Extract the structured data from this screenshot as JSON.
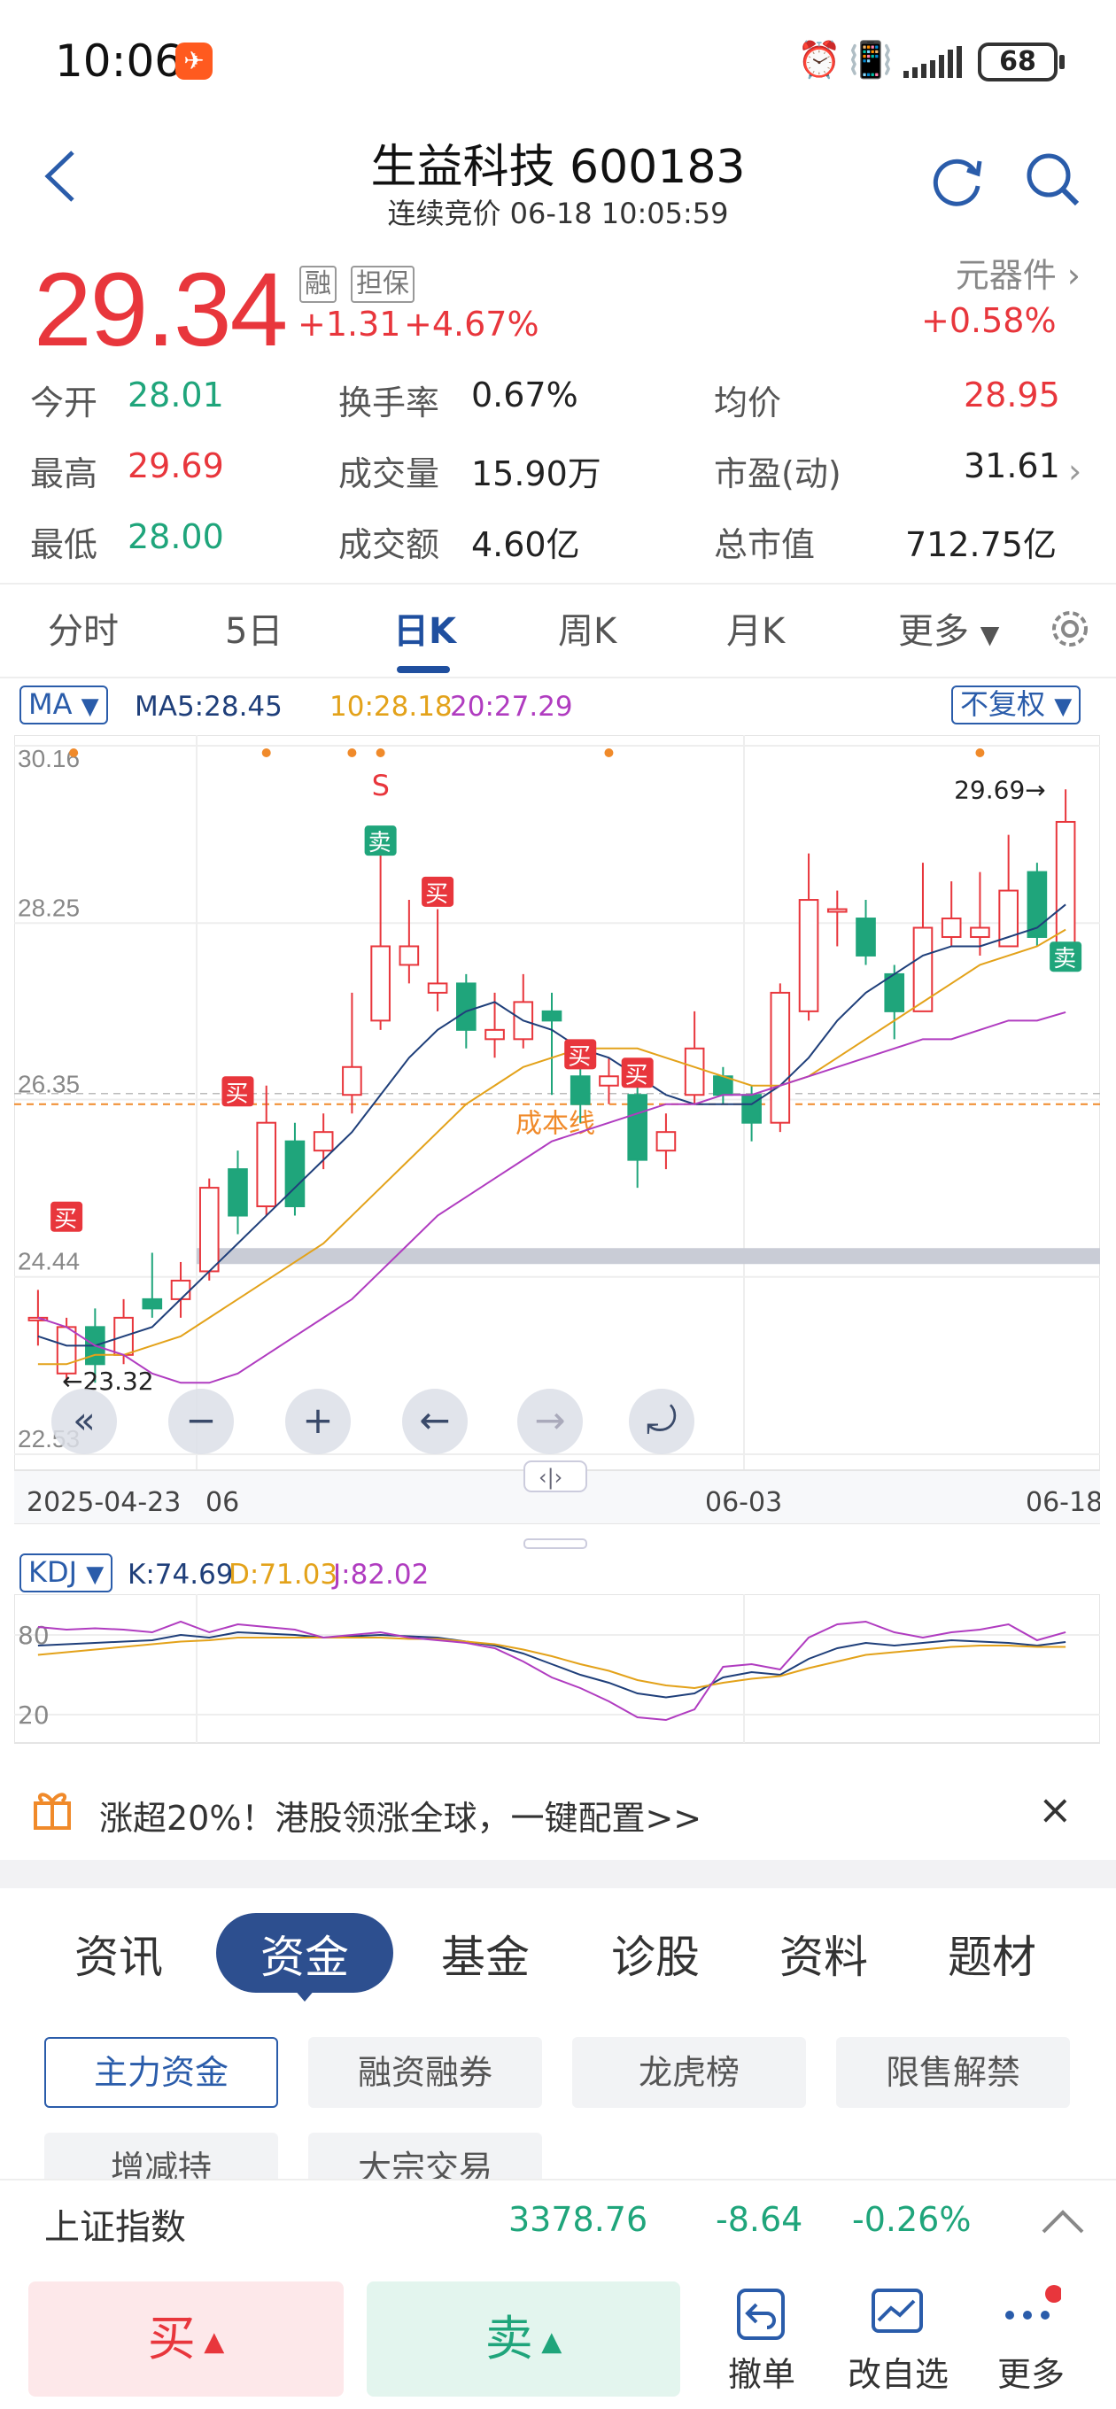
{
  "status": {
    "time": "10:06",
    "battery": "68"
  },
  "header": {
    "title": "生益科技 600183",
    "subtitle": "连续竞价 06-18 10:05:59"
  },
  "quote": {
    "price": "29.34",
    "tag1": "融",
    "tag2": "担保",
    "change": "+1.31",
    "change_pct": "+4.67%",
    "sector": "元器件",
    "sector_chg": "+0.58%",
    "stats": [
      {
        "label": "今开",
        "value": "28.01"
      },
      {
        "label": "换手率",
        "value": "0.67%"
      },
      {
        "label": "均价",
        "value": "28.95"
      },
      {
        "label": "最高",
        "value": "29.69"
      },
      {
        "label": "成交量",
        "value": "15.90万"
      },
      {
        "label": "市盈(动)",
        "value": "31.61"
      },
      {
        "label": "最低",
        "value": "28.00"
      },
      {
        "label": "成交额",
        "value": "4.60亿"
      },
      {
        "label": "总市值",
        "value": "712.75亿"
      }
    ]
  },
  "ktabs": [
    "分时",
    "5日",
    "日K",
    "周K",
    "月K",
    "更多"
  ],
  "chart_data": {
    "type": "candlestick",
    "indicator": "MA",
    "ma_legend": {
      "ma5": "MA5:28.45",
      "ma10": "10:28.18",
      "ma20": "20:27.29"
    },
    "adjust": "不复权",
    "y_ticks": [
      "30.16",
      "28.25",
      "26.35",
      "24.44",
      "22.53"
    ],
    "ylim": [
      22.53,
      30.16
    ],
    "x_ticks": [
      "2025-04-23",
      "06",
      "06-03",
      "06-18"
    ],
    "high_label": "29.69→",
    "low_label": "←23.32",
    "cost_line_label": "成本线",
    "cost_line": 26.3,
    "signal_s": "S",
    "buy_label": "买",
    "sell_label": "卖",
    "candles": [
      {
        "o": 24.0,
        "c": 24.0,
        "h": 24.3,
        "l": 23.7
      },
      {
        "o": 23.4,
        "c": 23.9,
        "h": 24.0,
        "l": 23.3
      },
      {
        "o": 23.9,
        "c": 23.5,
        "h": 24.1,
        "l": 23.3
      },
      {
        "o": 23.6,
        "c": 24.0,
        "h": 24.2,
        "l": 23.5
      },
      {
        "o": 24.2,
        "c": 24.1,
        "h": 24.7,
        "l": 24.0
      },
      {
        "o": 24.2,
        "c": 24.4,
        "h": 24.6,
        "l": 24.0
      },
      {
        "o": 24.5,
        "c": 25.4,
        "h": 25.5,
        "l": 24.4
      },
      {
        "o": 25.6,
        "c": 25.1,
        "h": 25.8,
        "l": 24.9
      },
      {
        "o": 25.2,
        "c": 26.1,
        "h": 26.5,
        "l": 25.1
      },
      {
        "o": 25.9,
        "c": 25.2,
        "h": 26.1,
        "l": 25.1
      },
      {
        "o": 25.8,
        "c": 26.0,
        "h": 26.2,
        "l": 25.6
      },
      {
        "o": 26.4,
        "c": 26.7,
        "h": 27.5,
        "l": 26.2
      },
      {
        "o": 27.2,
        "c": 28.0,
        "h": 29.0,
        "l": 27.1
      },
      {
        "o": 27.8,
        "c": 28.0,
        "h": 28.5,
        "l": 27.6
      },
      {
        "o": 27.5,
        "c": 27.6,
        "h": 28.4,
        "l": 27.3
      },
      {
        "o": 27.6,
        "c": 27.1,
        "h": 27.7,
        "l": 26.9
      },
      {
        "o": 27.0,
        "c": 27.1,
        "h": 27.5,
        "l": 26.8
      },
      {
        "o": 27.0,
        "c": 27.4,
        "h": 27.7,
        "l": 26.9
      },
      {
        "o": 27.3,
        "c": 27.2,
        "h": 27.5,
        "l": 26.4
      },
      {
        "o": 26.6,
        "c": 26.3,
        "h": 26.8,
        "l": 26.1
      },
      {
        "o": 26.5,
        "c": 26.6,
        "h": 26.8,
        "l": 26.3
      },
      {
        "o": 26.4,
        "c": 25.7,
        "h": 26.6,
        "l": 25.4
      },
      {
        "o": 25.8,
        "c": 26.0,
        "h": 26.2,
        "l": 25.6
      },
      {
        "o": 26.4,
        "c": 26.9,
        "h": 27.3,
        "l": 26.3
      },
      {
        "o": 26.6,
        "c": 26.4,
        "h": 26.7,
        "l": 26.3
      },
      {
        "o": 26.4,
        "c": 26.1,
        "h": 26.5,
        "l": 25.9
      },
      {
        "o": 26.1,
        "c": 27.5,
        "h": 27.6,
        "l": 26.0
      },
      {
        "o": 27.3,
        "c": 28.5,
        "h": 29.0,
        "l": 27.2
      },
      {
        "o": 28.4,
        "c": 28.4,
        "h": 28.6,
        "l": 28.0
      },
      {
        "o": 28.3,
        "c": 27.9,
        "h": 28.5,
        "l": 27.8
      },
      {
        "o": 27.7,
        "c": 27.3,
        "h": 27.8,
        "l": 27.0
      },
      {
        "o": 27.3,
        "c": 28.2,
        "h": 28.9,
        "l": 27.3
      },
      {
        "o": 28.1,
        "c": 28.3,
        "h": 28.7,
        "l": 28.0
      },
      {
        "o": 28.1,
        "c": 28.2,
        "h": 28.8,
        "l": 27.9
      },
      {
        "o": 28.0,
        "c": 28.6,
        "h": 29.2,
        "l": 28.0
      },
      {
        "o": 28.8,
        "c": 28.1,
        "h": 28.9,
        "l": 28.0
      },
      {
        "o": 28.0,
        "c": 29.34,
        "h": 29.69,
        "l": 28.0
      }
    ],
    "ma5": [
      23.8,
      23.7,
      23.7,
      23.8,
      23.9,
      24.2,
      24.5,
      24.8,
      25.1,
      25.4,
      25.7,
      26.0,
      26.4,
      26.8,
      27.1,
      27.3,
      27.4,
      27.2,
      27.1,
      26.9,
      26.8,
      26.6,
      26.4,
      26.3,
      26.3,
      26.3,
      26.5,
      26.8,
      27.2,
      27.5,
      27.7,
      27.9,
      28.0,
      28.0,
      28.1,
      28.2,
      28.45
    ],
    "ma10": [
      23.5,
      23.5,
      23.6,
      23.6,
      23.7,
      23.8,
      24.0,
      24.2,
      24.4,
      24.6,
      24.8,
      25.1,
      25.4,
      25.7,
      26.0,
      26.3,
      26.5,
      26.7,
      26.8,
      26.9,
      26.9,
      26.9,
      26.8,
      26.7,
      26.6,
      26.5,
      26.5,
      26.6,
      26.8,
      27.0,
      27.2,
      27.4,
      27.6,
      27.8,
      27.9,
      28.0,
      28.18
    ],
    "ma20": [
      24.0,
      23.9,
      23.7,
      23.6,
      23.4,
      23.3,
      23.3,
      23.4,
      23.6,
      23.8,
      24.0,
      24.2,
      24.5,
      24.8,
      25.1,
      25.3,
      25.5,
      25.7,
      25.9,
      26.0,
      26.1,
      26.2,
      26.3,
      26.3,
      26.4,
      26.4,
      26.5,
      26.6,
      26.7,
      26.8,
      26.9,
      27.0,
      27.0,
      27.1,
      27.2,
      27.2,
      27.29
    ],
    "kdj": {
      "legend_k": "K:74.69",
      "legend_d": "D:71.03",
      "legend_j": "J:82.02",
      "y_ticks": [
        "80",
        "20"
      ],
      "K": [
        72,
        73,
        74,
        75,
        76,
        80,
        78,
        82,
        81,
        80,
        78,
        79,
        80,
        79,
        78,
        75,
        72,
        66,
        58,
        50,
        44,
        36,
        33,
        36,
        48,
        52,
        50,
        62,
        70,
        74,
        72,
        74,
        76,
        75,
        74,
        72,
        74.69
      ],
      "D": [
        65,
        67,
        69,
        71,
        73,
        75,
        76,
        78,
        78,
        78,
        78,
        78,
        78,
        77,
        77,
        75,
        73,
        69,
        64,
        58,
        53,
        46,
        42,
        40,
        44,
        47,
        49,
        55,
        60,
        65,
        67,
        69,
        71,
        72,
        72,
        71,
        71.03
      ],
      "J": [
        86,
        84,
        85,
        84,
        82,
        90,
        82,
        88,
        86,
        84,
        78,
        80,
        82,
        78,
        76,
        74,
        70,
        60,
        48,
        40,
        30,
        18,
        16,
        24,
        56,
        58,
        54,
        78,
        88,
        90,
        82,
        78,
        82,
        84,
        88,
        76,
        82.02
      ]
    }
  },
  "chart_buttons": [
    "«",
    "−",
    "+",
    "←",
    "→",
    "⤾"
  ],
  "promo": {
    "text": "涨超20%！港股领涨全球，一键配置>>",
    "close": "×"
  },
  "bottom_tabs": [
    "资讯",
    "资金",
    "基金",
    "诊股",
    "资料",
    "题材"
  ],
  "chips": [
    "主力资金",
    "融资融券",
    "龙虎榜",
    "限售解禁",
    "增减持",
    "大宗交易"
  ],
  "index": {
    "label": "上证指数",
    "value": "3378.76",
    "chg": "-8.64",
    "pct": "-0.26%"
  },
  "actions": {
    "buy": "买",
    "sell": "卖",
    "cancel": "撤单",
    "watch": "改自选",
    "more": "更多"
  }
}
